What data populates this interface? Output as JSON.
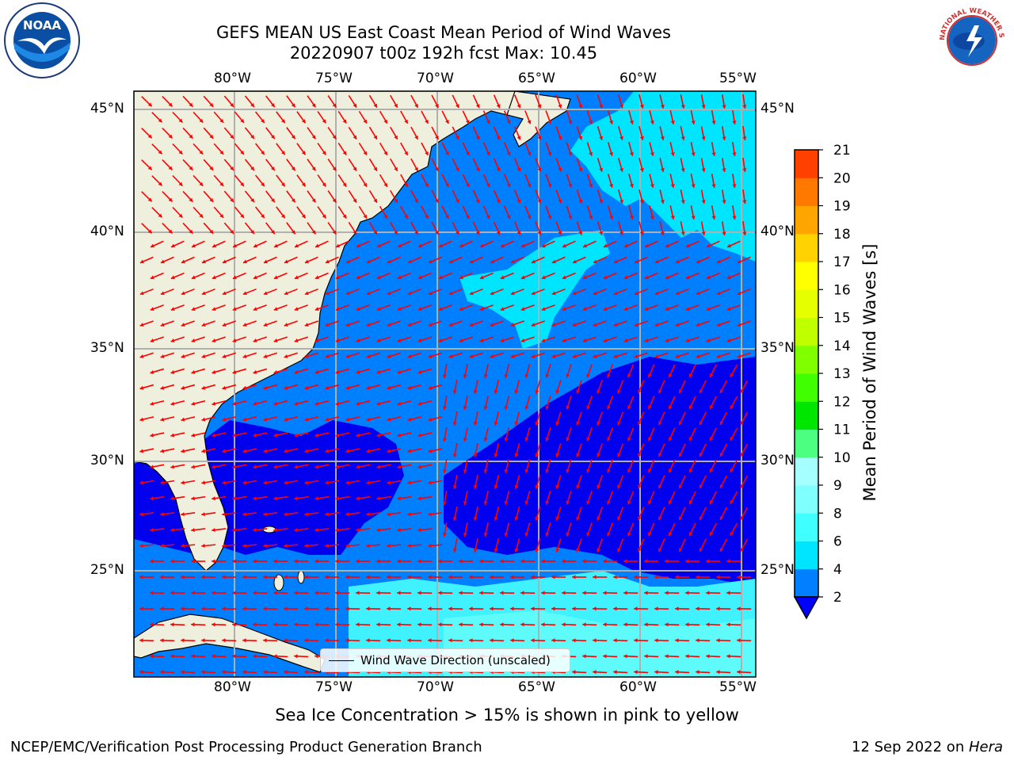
{
  "title": {
    "line1": "GEFS MEAN US East Coast Mean Period of Wind Waves",
    "line2": "20220907 t00z 192h fcst   Max: 10.45"
  },
  "axes": {
    "lon_labels": [
      "80°W",
      "75°W",
      "70°W",
      "65°W",
      "60°W",
      "55°W"
    ],
    "lat_labels": [
      "45°N",
      "40°N",
      "35°N",
      "30°N",
      "25°N"
    ]
  },
  "legend": {
    "label": "Wind Wave Direction (unscaled)"
  },
  "colorbar": {
    "label": "Mean Period of Wind Waves [s]",
    "ticks": [
      "2",
      "4",
      "6",
      "8",
      "9",
      "10",
      "11",
      "12",
      "13",
      "14",
      "15",
      "16",
      "17",
      "18",
      "19",
      "20",
      "21"
    ],
    "colors": [
      "#0080ff",
      "#00e5ff",
      "#40ffff",
      "#80ffff",
      "#a6ffff",
      "#4dff80",
      "#00e600",
      "#40ff00",
      "#80ff00",
      "#bfff00",
      "#e6ff00",
      "#ffff00",
      "#ffd200",
      "#ffa500",
      "#ff7800",
      "#ff4000",
      "#ff0000"
    ],
    "extend_color": "#0000ff"
  },
  "field_colors": {
    "land": "#efefde",
    "deep": "#0000ee",
    "mid": "#0080ff",
    "light": "#00e5ff",
    "pale": "#5ffbfb",
    "arrow": "#ff0000"
  },
  "notes": {
    "ice": "Sea Ice Concentration > 15% is shown in pink to yellow"
  },
  "footer": {
    "left": "NCEP/EMC/Verification Post Processing Product Generation Branch",
    "date": "12 Sep 2022 on ",
    "machine": "Hera"
  },
  "logos": {
    "noaa": "NOAA",
    "nws": "NATIONAL WEATHER SERVICE"
  }
}
